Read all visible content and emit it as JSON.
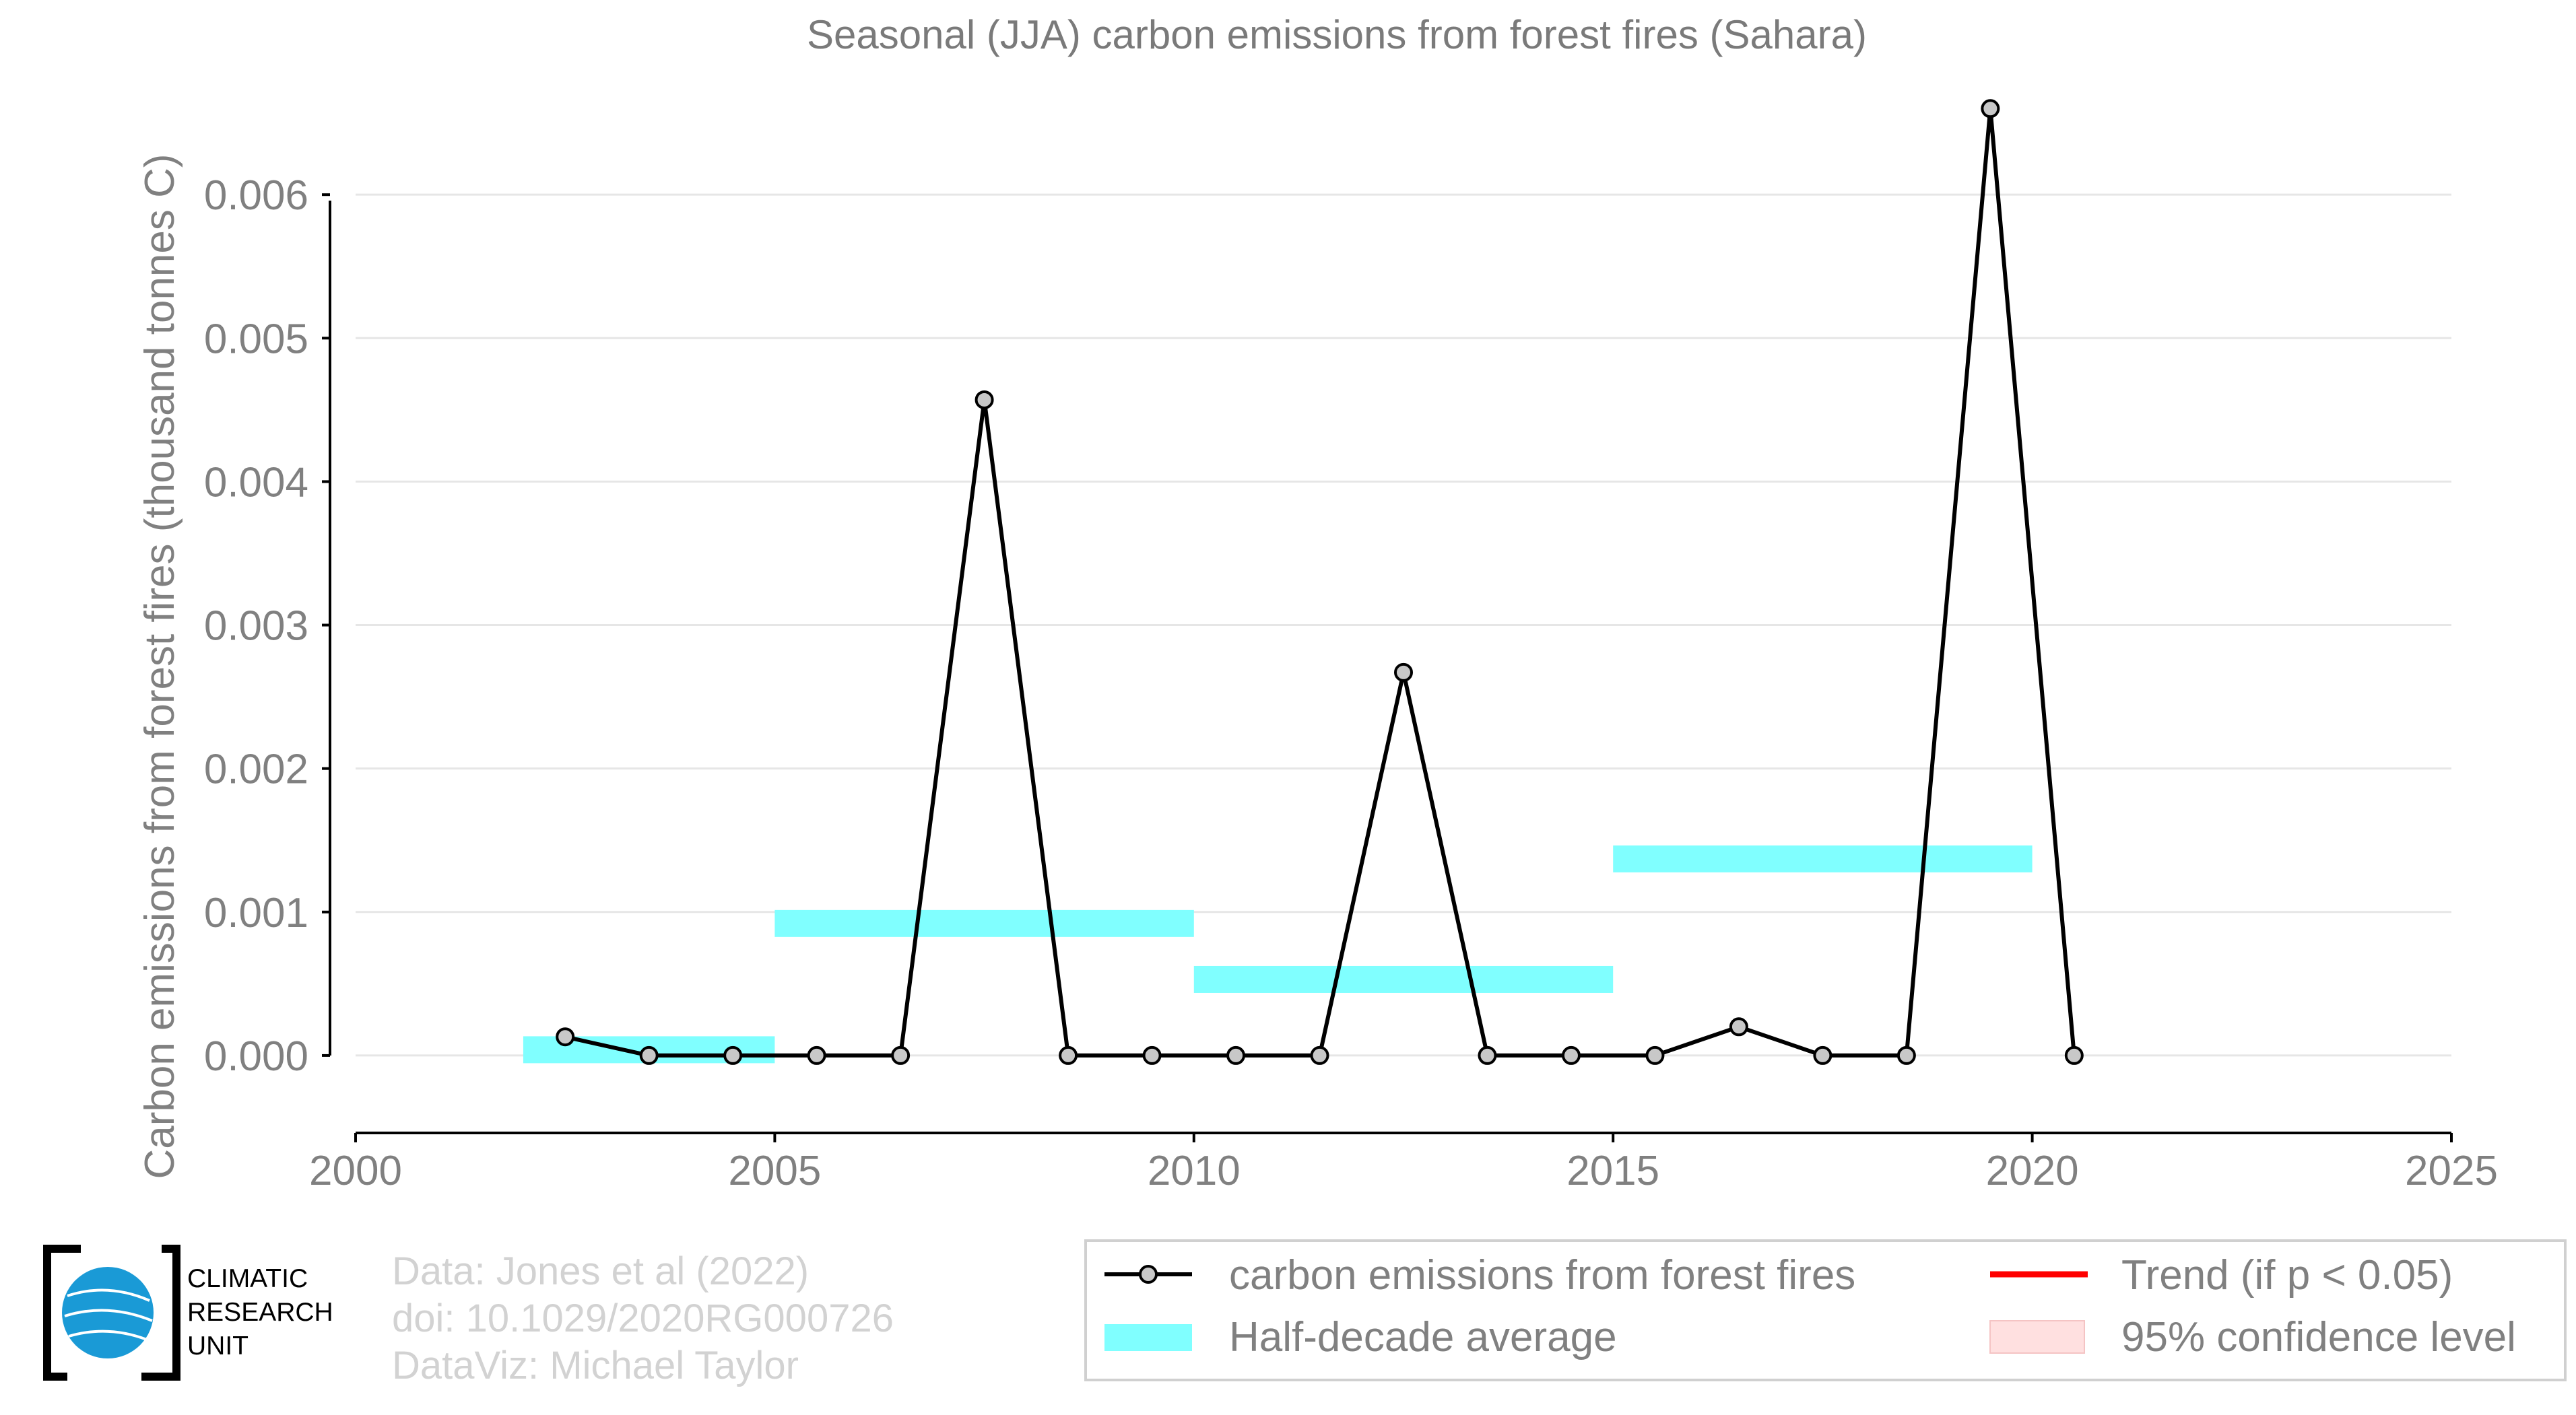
{
  "chart_data": {
    "type": "line",
    "title": "Seasonal (JJA) carbon emissions from forest fires (Sahara)",
    "xlabel": "",
    "ylabel": "Carbon emissions from forest fires (thousand tonnes C)",
    "xlim": [
      2000,
      2025
    ],
    "ylim": [
      -0.00054,
      0.0067
    ],
    "x_ticks": [
      2000,
      2005,
      2010,
      2015,
      2020,
      2025
    ],
    "x_tick_labels": [
      "2000",
      "2005",
      "2010",
      "2015",
      "2020",
      "2025"
    ],
    "y_ticks": [
      0,
      0.001,
      0.002,
      0.003,
      0.004,
      0.005,
      0.006
    ],
    "y_tick_labels": [
      "0.000",
      "0.001",
      "0.002",
      "0.003",
      "0.004",
      "0.005",
      "0.006"
    ],
    "grid": true,
    "series": [
      {
        "name": "carbon emissions from forest fires",
        "color": "#000000",
        "marker_fill": "#c8c8c8",
        "x": [
          2002.5,
          2003.5,
          2004.5,
          2005.5,
          2006.5,
          2007.5,
          2008.5,
          2009.5,
          2010.5,
          2011.5,
          2012.5,
          2013.5,
          2014.5,
          2015.5,
          2016.5,
          2017.5,
          2018.5,
          2019.5,
          2020.5
        ],
        "y": [
          0.00013,
          0,
          0,
          0,
          0,
          0.00457,
          0,
          0,
          0,
          0,
          0.00267,
          0,
          0,
          0,
          0.0002,
          0,
          0,
          0.0066,
          0
        ]
      }
    ],
    "half_decade_average": {
      "name": "Half-decade average",
      "color": "#80ffff",
      "segments": [
        {
          "x_start": 2002,
          "x_end": 2005,
          "value": 4e-05
        },
        {
          "x_start": 2005,
          "x_end": 2010,
          "value": 0.00092
        },
        {
          "x_start": 2010,
          "x_end": 2015,
          "value": 0.00053
        },
        {
          "x_start": 2015,
          "x_end": 2020,
          "value": 0.00137
        }
      ]
    },
    "legend": {
      "placement": "bottom-right",
      "entries": [
        {
          "label": "carbon emissions from forest fires",
          "kind": "line-marker",
          "color": "#000000"
        },
        {
          "label": "Trend (if p < 0.05)",
          "kind": "line",
          "color": "#ff0000"
        },
        {
          "label": "Half-decade average",
          "kind": "band",
          "color": "#80ffff"
        },
        {
          "label": "95% confidence level",
          "kind": "patch",
          "color": "#ffe0e0"
        }
      ]
    }
  },
  "credits": {
    "lines": [
      "Data: Jones et al (2022)",
      "doi: 10.1029/2020RG000726",
      "DataViz: Michael Taylor"
    ]
  },
  "logo": {
    "lines": [
      "CLIMATIC",
      "RESEARCH",
      "UNIT"
    ],
    "globe_color": "#1a9ad6"
  }
}
